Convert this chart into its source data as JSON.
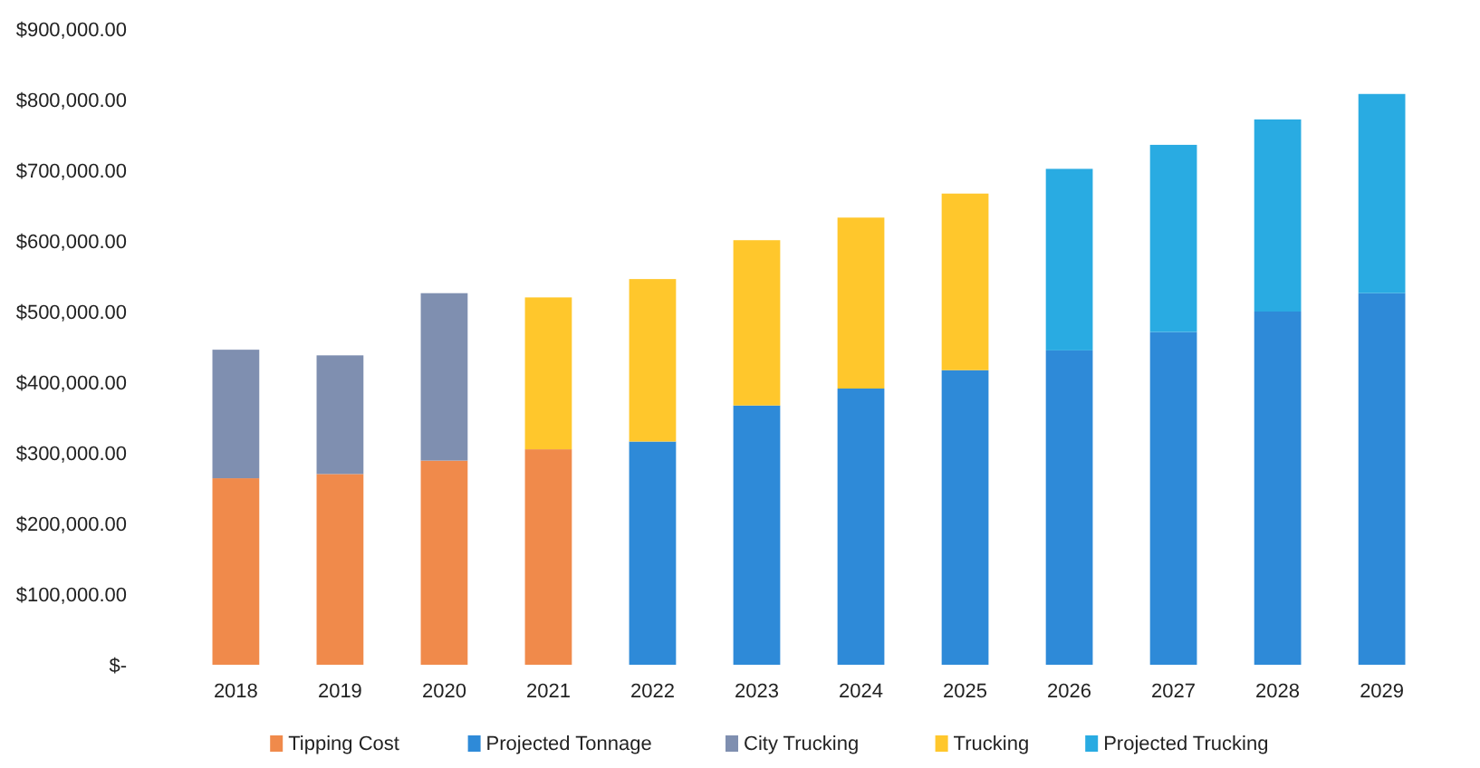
{
  "chart_data": {
    "type": "bar",
    "stacked": true,
    "categories": [
      "2018",
      "2019",
      "2020",
      "2021",
      "2022",
      "2023",
      "2024",
      "2025",
      "2026",
      "2027",
      "2028",
      "2029"
    ],
    "series": [
      {
        "name": "Tipping Cost",
        "color": "#f08a4b",
        "values": [
          264000,
          270000,
          289000,
          305000,
          null,
          null,
          null,
          null,
          null,
          null,
          null,
          null
        ]
      },
      {
        "name": "Projected Tonnage",
        "color": "#2e8ad8",
        "values": [
          null,
          null,
          null,
          null,
          316000,
          367000,
          391000,
          417000,
          445000,
          471000,
          500000,
          526000
        ]
      },
      {
        "name": "City Trucking",
        "color": "#7f8fb0",
        "values": [
          182000,
          168000,
          237000,
          null,
          null,
          null,
          null,
          null,
          null,
          null,
          null,
          null
        ]
      },
      {
        "name": "Trucking",
        "color": "#ffc72c",
        "values": [
          null,
          null,
          null,
          215000,
          230000,
          234000,
          242000,
          250000,
          null,
          null,
          null,
          null
        ]
      },
      {
        "name": "Projected Trucking",
        "color": "#29abe2",
        "values": [
          null,
          null,
          null,
          null,
          null,
          null,
          null,
          null,
          257000,
          265000,
          272000,
          282000
        ]
      }
    ],
    "ylim": [
      0,
      900000
    ],
    "yticks": [
      {
        "value": 0,
        "label": "$-"
      },
      {
        "value": 100000,
        "label": "$100,000.00"
      },
      {
        "value": 200000,
        "label": "$200,000.00"
      },
      {
        "value": 300000,
        "label": "$300,000.00"
      },
      {
        "value": 400000,
        "label": "$400,000.00"
      },
      {
        "value": 500000,
        "label": "$500,000.00"
      },
      {
        "value": 600000,
        "label": "$600,000.00"
      },
      {
        "value": 700000,
        "label": "$700,000.00"
      },
      {
        "value": 800000,
        "label": "$800,000.00"
      },
      {
        "value": 900000,
        "label": "$900,000.00"
      }
    ],
    "legend": "bottom"
  }
}
